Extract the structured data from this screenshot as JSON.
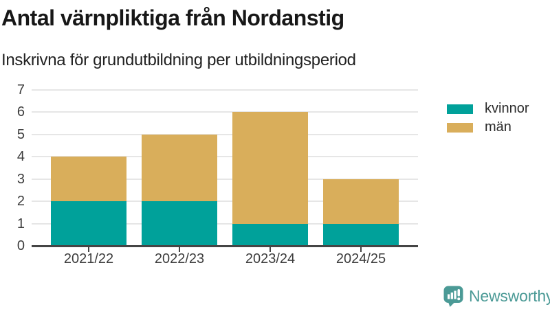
{
  "header": {
    "title": "Antal värnpliktiga från Nordanstig",
    "subtitle": "Inskrivna för grundutbildning per utbildningsperiod"
  },
  "chart_data": {
    "type": "bar",
    "stacked": true,
    "title": "Antal värnpliktiga från Nordanstig",
    "subtitle": "Inskrivna för grundutbildning per utbildningsperiod",
    "categories": [
      "2021/22",
      "2022/23",
      "2023/24",
      "2024/25"
    ],
    "series": [
      {
        "name": "kvinnor",
        "color": "#00a19a",
        "values": [
          2,
          2,
          1,
          1
        ]
      },
      {
        "name": "män",
        "color": "#d9ae5b",
        "values": [
          2,
          3,
          5,
          2
        ]
      }
    ],
    "totals": [
      4,
      5,
      6,
      3
    ],
    "xlabel": "",
    "ylabel": "",
    "ylim": [
      0,
      7
    ],
    "yticks": [
      0,
      1,
      2,
      3,
      4,
      5,
      6,
      7
    ],
    "grid": true,
    "legend_position": "right-top"
  },
  "footer": {
    "brand": "Newsworthy"
  },
  "colors": {
    "kvinnor": "#00a19a",
    "man": "#d9ae5b",
    "brand_teal": "#4b9a96",
    "grid": "#e6e6e6",
    "axis": "#454545",
    "title_text": "#171717",
    "label_text": "#3d3d3d"
  }
}
